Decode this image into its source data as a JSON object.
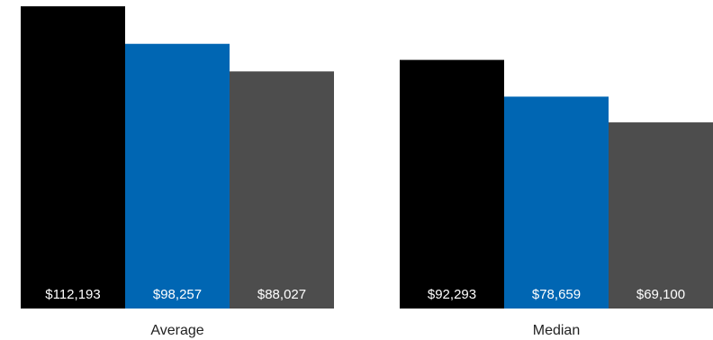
{
  "chart_data": {
    "type": "bar",
    "categories": [
      "Average",
      "Median"
    ],
    "series": [
      {
        "values": [
          112193,
          92293
        ],
        "labels": [
          "$112,193",
          "$92,293"
        ],
        "color": "#000000"
      },
      {
        "values": [
          98257,
          78659
        ],
        "labels": [
          "$98,257",
          "$78,659"
        ],
        "color": "#0066b3"
      },
      {
        "values": [
          88027,
          69100
        ],
        "labels": [
          "$88,027",
          "$69,100"
        ],
        "color": "#4d4d4d"
      }
    ],
    "title": "",
    "xlabel": "",
    "ylabel": "",
    "ylim": [
      0,
      112193
    ],
    "grid": false,
    "legend": "none"
  }
}
